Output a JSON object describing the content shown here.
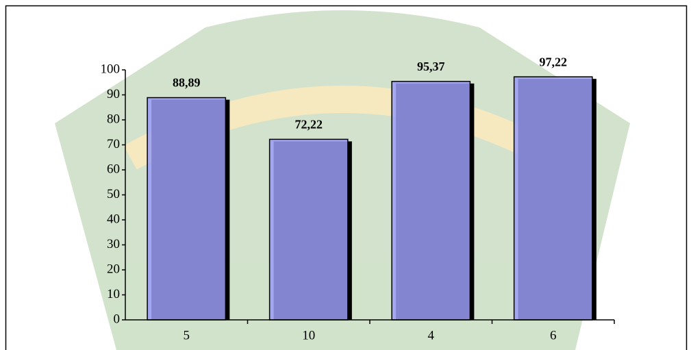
{
  "chart_data": {
    "type": "bar",
    "categories": [
      "5",
      "10",
      "4",
      "6"
    ],
    "values": [
      88.89,
      72.22,
      95.37,
      97.22
    ],
    "value_labels": [
      "88,89",
      "72,22",
      "95,37",
      "97,22"
    ],
    "color": "#9a9cf4",
    "ylim": [
      0,
      100
    ],
    "yticks": [
      0,
      10,
      20,
      30,
      40,
      50,
      60,
      70,
      80,
      90,
      100
    ]
  }
}
